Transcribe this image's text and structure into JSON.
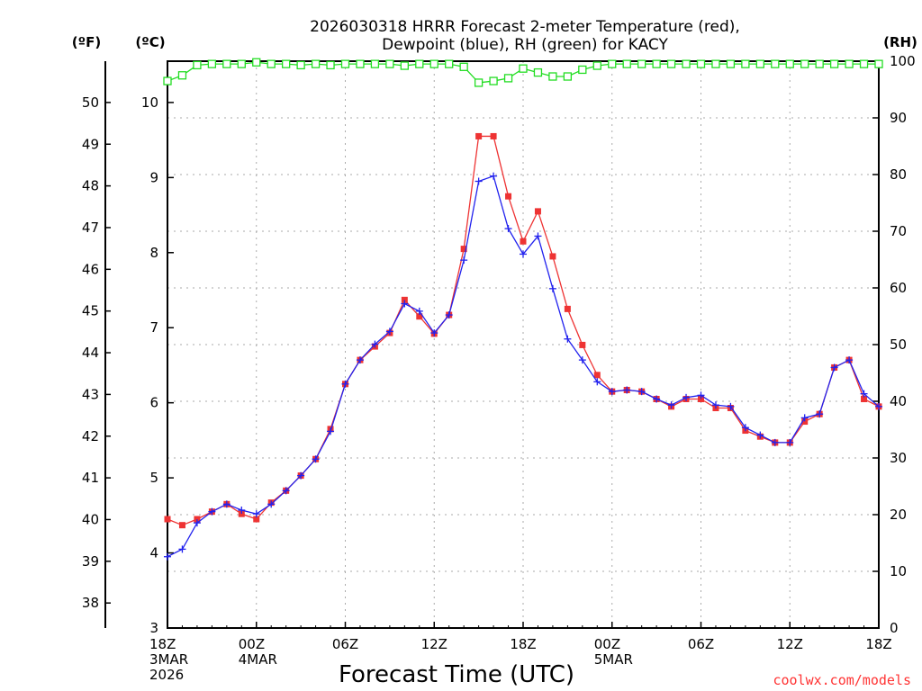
{
  "chart_data": {
    "type": "line",
    "title_lines": [
      "2026030318 HRRR Forecast 2-meter Temperature (red),",
      "Dewpoint (blue), RH (green) for KACY"
    ],
    "xlabel": "Forecast Time (UTC)",
    "credit": "coolwx.com/models",
    "units": {
      "fahrenheit": "(ºF)",
      "celsius": "(ºC)",
      "rh": "(RH)"
    },
    "x_range": [
      0,
      48
    ],
    "x_ticks": [
      {
        "x": 0,
        "lines": [
          "18Z",
          "3MAR",
          "2026"
        ]
      },
      {
        "x": 6,
        "lines": [
          "00Z",
          "4MAR"
        ]
      },
      {
        "x": 12,
        "lines": [
          "06Z"
        ]
      },
      {
        "x": 18,
        "lines": [
          "12Z"
        ]
      },
      {
        "x": 24,
        "lines": [
          "18Z"
        ]
      },
      {
        "x": 30,
        "lines": [
          "00Z",
          "5MAR"
        ]
      },
      {
        "x": 36,
        "lines": [
          "06Z"
        ]
      },
      {
        "x": 42,
        "lines": [
          "12Z"
        ]
      },
      {
        "x": 48,
        "lines": [
          "18Z"
        ]
      }
    ],
    "celsius_range": [
      3,
      10.55
    ],
    "celsius_ticks": [
      3,
      4,
      5,
      6,
      7,
      8,
      9,
      10
    ],
    "fahrenheit_ticks": [
      38,
      39,
      40,
      41,
      42,
      43,
      44,
      45,
      46,
      47,
      48,
      49,
      50
    ],
    "rh_range": [
      0,
      100
    ],
    "rh_ticks": [
      0,
      10,
      20,
      30,
      40,
      50,
      60,
      70,
      80,
      90,
      100
    ],
    "grid": true,
    "colors": {
      "temperature": "#ee3333",
      "dewpoint": "#2222ee",
      "rh": "#22dd22"
    },
    "series": [
      {
        "name": "Temperature",
        "unit": "C",
        "values": [
          4.45,
          4.37,
          4.45,
          4.55,
          4.65,
          4.52,
          4.45,
          4.67,
          4.83,
          5.03,
          5.25,
          5.65,
          6.25,
          6.57,
          6.75,
          6.93,
          7.37,
          7.15,
          6.92,
          7.17,
          8.05,
          9.55,
          9.55,
          8.75,
          8.15,
          8.55,
          7.95,
          7.25,
          6.77,
          6.37,
          6.15,
          6.17,
          6.15,
          6.05,
          5.95,
          6.05,
          6.05,
          5.93,
          5.93,
          5.63,
          5.55,
          5.47,
          5.47,
          5.75,
          5.85,
          6.47,
          6.57,
          6.05,
          5.95
        ]
      },
      {
        "name": "Dewpoint",
        "unit": "C",
        "values": [
          3.95,
          4.05,
          4.4,
          4.55,
          4.65,
          4.57,
          4.52,
          4.65,
          4.83,
          5.03,
          5.25,
          5.62,
          6.25,
          6.57,
          6.78,
          6.95,
          7.32,
          7.22,
          6.93,
          7.17,
          7.9,
          8.95,
          9.02,
          8.32,
          7.98,
          8.22,
          7.52,
          6.85,
          6.57,
          6.28,
          6.15,
          6.17,
          6.15,
          6.05,
          5.97,
          6.07,
          6.1,
          5.97,
          5.95,
          5.67,
          5.57,
          5.47,
          5.47,
          5.8,
          5.85,
          6.47,
          6.57,
          6.12,
          5.95
        ]
      },
      {
        "name": "RH",
        "unit": "%",
        "values": [
          96.5,
          97.5,
          99.3,
          99.5,
          99.5,
          99.5,
          99.8,
          99.5,
          99.5,
          99.3,
          99.5,
          99.3,
          99.5,
          99.5,
          99.5,
          99.5,
          99.2,
          99.5,
          99.5,
          99.5,
          99,
          96.2,
          96.5,
          97,
          98.7,
          98,
          97.3,
          97.3,
          98.5,
          99.2,
          99.5,
          99.5,
          99.5,
          99.5,
          99.5,
          99.5,
          99.5,
          99.5,
          99.5,
          99.5,
          99.5,
          99.5,
          99.5,
          99.5,
          99.5,
          99.5,
          99.5,
          99.5,
          99.5
        ]
      }
    ]
  }
}
